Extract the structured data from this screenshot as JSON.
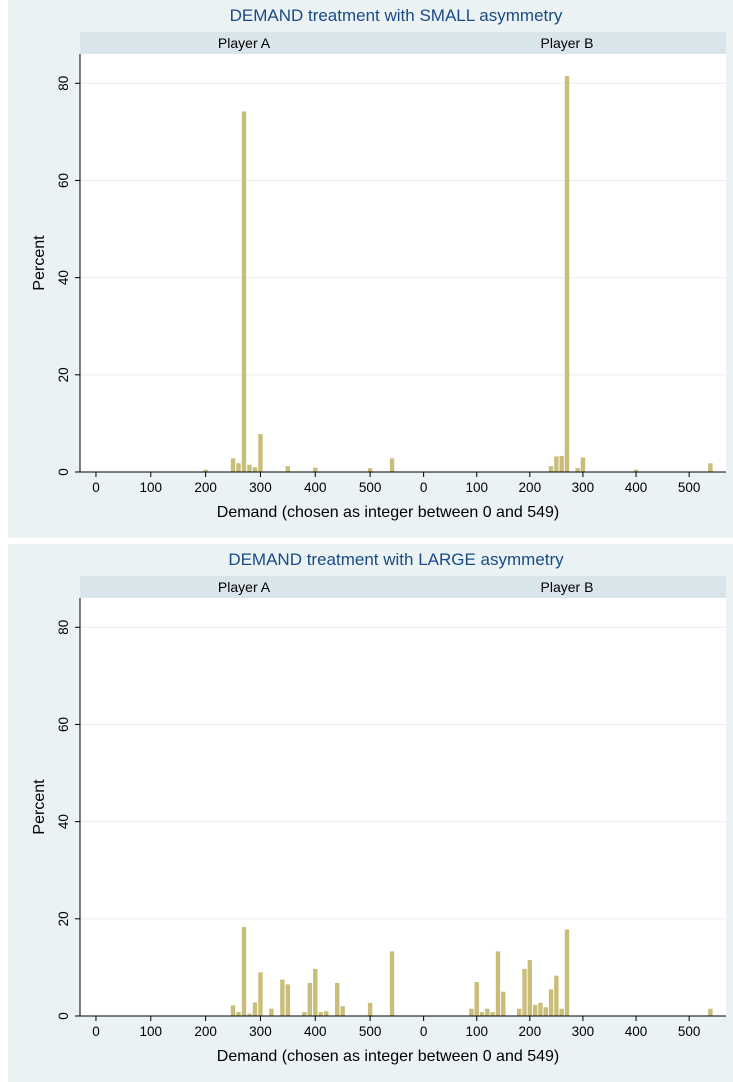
{
  "chart_data": [
    {
      "type": "bar",
      "title": "DEMAND treatment with SMALL asymmetry",
      "xlabel": "Demand (chosen as integer between 0 and 549)",
      "ylabel": "Percent",
      "xlim": [
        -20,
        560
      ],
      "ylim": [
        0,
        85
      ],
      "xticks": [
        0,
        100,
        200,
        300,
        400,
        500
      ],
      "yticks": [
        0,
        20,
        40,
        60,
        80
      ],
      "grid": true,
      "bar_color": "#c8bd79",
      "panels": [
        {
          "name": "Player A",
          "series": [
            {
              "x": [
                200,
                250,
                260,
                270,
                280,
                290,
                300,
                350,
                400,
                500,
                540
              ],
              "values": [
                0.5,
                2.8,
                1.8,
                74.2,
                1.5,
                1.0,
                7.8,
                1.2,
                0.9,
                0.8,
                2.8
              ]
            }
          ]
        },
        {
          "name": "Player B",
          "series": [
            {
              "x": [
                240,
                250,
                260,
                270,
                290,
                300,
                400,
                540
              ],
              "values": [
                1.2,
                3.2,
                3.3,
                81.5,
                0.8,
                3.0,
                0.5,
                1.8
              ]
            }
          ]
        }
      ]
    },
    {
      "type": "bar",
      "title": "DEMAND treatment with LARGE asymmetry",
      "xlabel": "Demand (chosen as integer between 0 and 549)",
      "ylabel": "Percent",
      "xlim": [
        -20,
        560
      ],
      "ylim": [
        0,
        85
      ],
      "xticks": [
        0,
        100,
        200,
        300,
        400,
        500
      ],
      "yticks": [
        0,
        20,
        40,
        60,
        80
      ],
      "grid": true,
      "bar_color": "#c8bd79",
      "panels": [
        {
          "name": "Player A",
          "series": [
            {
              "x": [
                250,
                260,
                270,
                280,
                290,
                300,
                320,
                340,
                350,
                380,
                390,
                400,
                410,
                420,
                440,
                450,
                500,
                540
              ],
              "values": [
                2.2,
                0.8,
                18.3,
                0.5,
                2.8,
                9.0,
                1.5,
                7.5,
                6.5,
                0.8,
                6.8,
                9.7,
                0.8,
                1.0,
                6.8,
                2.0,
                2.7,
                13.3
              ]
            }
          ]
        },
        {
          "name": "Player B",
          "series": [
            {
              "x": [
                90,
                100,
                110,
                120,
                130,
                140,
                150,
                180,
                190,
                200,
                210,
                220,
                230,
                240,
                250,
                260,
                270,
                540
              ],
              "values": [
                1.5,
                7.0,
                0.8,
                1.5,
                0.8,
                13.3,
                5.0,
                1.5,
                9.7,
                11.5,
                2.3,
                2.7,
                1.8,
                5.5,
                8.3,
                1.5,
                17.8,
                1.5
              ]
            }
          ]
        }
      ]
    }
  ]
}
